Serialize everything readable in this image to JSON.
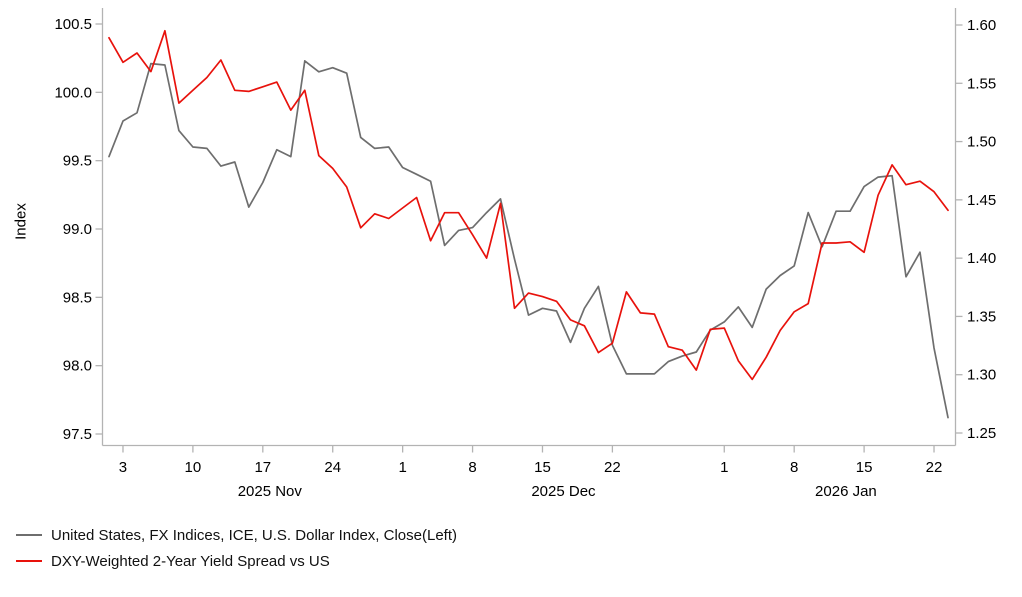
{
  "page": {
    "background": "#ffffff"
  },
  "chart_data": {
    "type": "line",
    "title": "",
    "grid": false,
    "legend_position": "bottom-left",
    "x_dates": [
      "2025-10-31",
      "2025-11-03",
      "2025-11-04",
      "2025-11-05",
      "2025-11-06",
      "2025-11-07",
      "2025-11-10",
      "2025-11-11",
      "2025-11-12",
      "2025-11-13",
      "2025-11-14",
      "2025-11-17",
      "2025-11-18",
      "2025-11-19",
      "2025-11-20",
      "2025-11-21",
      "2025-11-24",
      "2025-11-25",
      "2025-11-26",
      "2025-11-27",
      "2025-11-28",
      "2025-12-01",
      "2025-12-02",
      "2025-12-03",
      "2025-12-04",
      "2025-12-05",
      "2025-12-08",
      "2025-12-09",
      "2025-12-10",
      "2025-12-11",
      "2025-12-12",
      "2025-12-15",
      "2025-12-16",
      "2025-12-17",
      "2025-12-18",
      "2025-12-19",
      "2025-12-22",
      "2025-12-23",
      "2025-12-24",
      "2025-12-25",
      "2025-12-26",
      "2025-12-29",
      "2025-12-30",
      "2025-12-31",
      "2026-01-01",
      "2026-01-02",
      "2026-01-05",
      "2026-01-06",
      "2026-01-07",
      "2026-01-08",
      "2026-01-09",
      "2026-01-12",
      "2026-01-13",
      "2026-01-14",
      "2026-01-15",
      "2026-01-16",
      "2026-01-19",
      "2026-01-20",
      "2026-01-21",
      "2026-01-22",
      "2026-01-23"
    ],
    "series": [
      {
        "name": "United States, FX Indices, ICE, U.S. Dollar Index, Close(Left)",
        "axis": "left",
        "color": "#6e6e6e",
        "values": [
          99.53,
          99.79,
          99.85,
          100.21,
          100.2,
          99.72,
          99.6,
          99.59,
          99.46,
          99.49,
          99.16,
          99.34,
          99.58,
          99.53,
          100.23,
          100.15,
          100.18,
          100.14,
          99.67,
          99.59,
          99.6,
          99.45,
          99.4,
          99.35,
          98.88,
          98.99,
          99.01,
          99.12,
          99.22,
          98.78,
          98.37,
          98.42,
          98.4,
          98.17,
          98.42,
          98.58,
          98.15,
          97.94,
          97.94,
          97.94,
          98.03,
          98.07,
          98.1,
          98.26,
          98.32,
          98.43,
          98.28,
          98.56,
          98.66,
          98.73,
          99.12,
          98.87,
          99.13,
          99.13,
          99.31,
          99.38,
          99.39,
          98.65,
          98.83,
          98.13,
          97.62
        ]
      },
      {
        "name": "DXY-Weighted 2-Year Yield Spread vs US",
        "axis": "right",
        "color": "#e8120c",
        "values": [
          1.589,
          1.568,
          1.576,
          1.56,
          1.595,
          1.533,
          1.544,
          1.555,
          1.57,
          1.544,
          1.543,
          1.547,
          1.551,
          1.527,
          1.544,
          1.488,
          1.477,
          1.461,
          1.426,
          1.438,
          1.434,
          1.443,
          1.452,
          1.415,
          1.439,
          1.439,
          1.42,
          1.4,
          1.447,
          1.357,
          1.37,
          1.367,
          1.363,
          1.347,
          1.342,
          1.319,
          1.327,
          1.371,
          1.353,
          1.352,
          1.324,
          1.321,
          1.304,
          1.339,
          1.34,
          1.312,
          1.296,
          1.315,
          1.338,
          1.354,
          1.361,
          1.413,
          1.413,
          1.414,
          1.405,
          1.454,
          1.48,
          1.463,
          1.466,
          1.457,
          1.441
        ]
      }
    ],
    "left_axis": {
      "label": "Index",
      "min": 97.5,
      "max": 100.5,
      "decimals": 1,
      "ticks": [
        100.5,
        100.0,
        99.5,
        99.0,
        98.5,
        98.0,
        97.5
      ]
    },
    "right_axis": {
      "label": "",
      "min": 1.25,
      "max": 1.6,
      "decimals": 2,
      "ticks": [
        1.6,
        1.55,
        1.5,
        1.45,
        1.4,
        1.35,
        1.3,
        1.25
      ]
    },
    "x_axis": {
      "day_ticks": [
        {
          "index": 1,
          "label": "3"
        },
        {
          "index": 6,
          "label": "10"
        },
        {
          "index": 11,
          "label": "17"
        },
        {
          "index": 16,
          "label": "24"
        },
        {
          "index": 21,
          "label": "1"
        },
        {
          "index": 26,
          "label": "8"
        },
        {
          "index": 31,
          "label": "15"
        },
        {
          "index": 36,
          "label": "22"
        },
        {
          "index": 44,
          "label": "1"
        },
        {
          "index": 49,
          "label": "8"
        },
        {
          "index": 54,
          "label": "15"
        },
        {
          "index": 59,
          "label": "22"
        }
      ],
      "month_labels": [
        {
          "index_pos": 11.5,
          "label": "2025 Nov"
        },
        {
          "index_pos": 32.5,
          "label": "2025 Dec"
        },
        {
          "index_pos": 52.7,
          "label": "2026 Jan"
        }
      ]
    },
    "style": {
      "axis_color": "#b3b3b3",
      "text_color": "#000000",
      "tick_font_size": 15,
      "line_width": 1.7
    }
  }
}
